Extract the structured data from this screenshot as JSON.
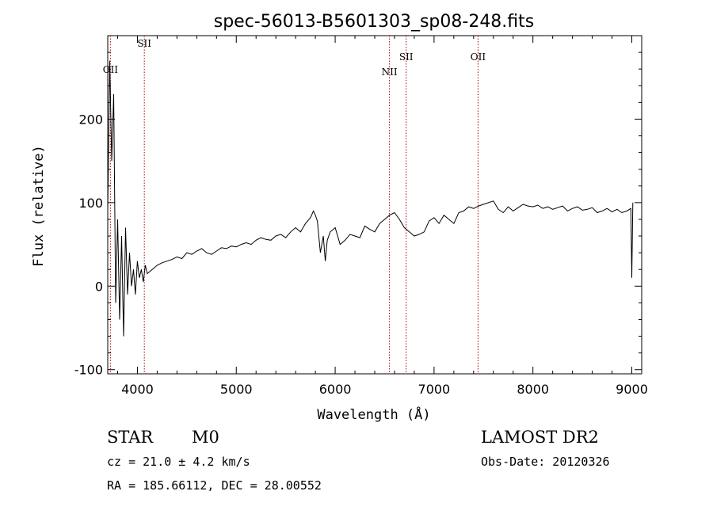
{
  "chart_data": {
    "type": "line",
    "title": "spec-56013-B5601303_sp08-248.fits",
    "xlabel": "Wavelength (Å)",
    "ylabel": "Flux (relative)",
    "xlim": [
      3700,
      9100
    ],
    "ylim": [
      -105,
      300
    ],
    "xticks": [
      4000,
      5000,
      6000,
      7000,
      8000,
      9000
    ],
    "yticks": [
      -100,
      0,
      100,
      200
    ],
    "grid": false,
    "series": [
      {
        "color": "#000000",
        "x": [
          3700,
          3720,
          3740,
          3760,
          3780,
          3800,
          3820,
          3840,
          3860,
          3880,
          3900,
          3920,
          3940,
          3960,
          3980,
          4000,
          4020,
          4040,
          4060,
          4080,
          4100,
          4150,
          4200,
          4250,
          4300,
          4350,
          4400,
          4450,
          4500,
          4550,
          4600,
          4650,
          4700,
          4750,
          4800,
          4850,
          4900,
          4950,
          5000,
          5050,
          5100,
          5150,
          5200,
          5250,
          5300,
          5350,
          5400,
          5450,
          5500,
          5550,
          5600,
          5650,
          5700,
          5750,
          5780,
          5800,
          5820,
          5850,
          5880,
          5900,
          5920,
          5950,
          6000,
          6050,
          6100,
          6150,
          6200,
          6250,
          6300,
          6350,
          6400,
          6450,
          6500,
          6550,
          6600,
          6650,
          6700,
          6750,
          6800,
          6850,
          6900,
          6950,
          7000,
          7050,
          7100,
          7150,
          7200,
          7250,
          7300,
          7350,
          7400,
          7450,
          7500,
          7550,
          7600,
          7650,
          7700,
          7750,
          7800,
          7850,
          7900,
          7950,
          8000,
          8050,
          8100,
          8150,
          8200,
          8250,
          8300,
          8350,
          8400,
          8450,
          8500,
          8550,
          8600,
          8650,
          8700,
          8750,
          8800,
          8850,
          8900,
          8950,
          8990,
          9000,
          9010
        ],
        "y": [
          90,
          270,
          150,
          230,
          -20,
          80,
          -40,
          60,
          -60,
          70,
          -10,
          40,
          0,
          20,
          -10,
          30,
          10,
          20,
          5,
          25,
          15,
          20,
          25,
          28,
          30,
          32,
          35,
          33,
          40,
          38,
          42,
          45,
          40,
          38,
          42,
          46,
          45,
          48,
          47,
          50,
          52,
          50,
          55,
          58,
          56,
          55,
          60,
          62,
          58,
          65,
          70,
          65,
          75,
          82,
          90,
          85,
          78,
          40,
          60,
          30,
          55,
          65,
          70,
          50,
          55,
          62,
          60,
          58,
          72,
          68,
          65,
          75,
          80,
          85,
          88,
          80,
          70,
          65,
          60,
          62,
          65,
          78,
          82,
          75,
          85,
          80,
          75,
          88,
          90,
          95,
          93,
          96,
          98,
          100,
          102,
          92,
          88,
          95,
          90,
          94,
          98,
          96,
          95,
          97,
          93,
          95,
          92,
          94,
          96,
          90,
          93,
          95,
          91,
          92,
          94,
          88,
          90,
          93,
          89,
          92,
          88,
          90,
          93,
          10,
          100
        ]
      }
    ],
    "annotations": [
      {
        "label": "OII",
        "x": 3727
      },
      {
        "label": "SII",
        "x": 4070
      },
      {
        "label": "NII",
        "x": 6549
      },
      {
        "label": "SII",
        "x": 6718
      },
      {
        "label": "OII",
        "x": 7445
      }
    ]
  },
  "info": {
    "object_class": "STAR",
    "subclass": "M0",
    "survey": "LAMOST DR2",
    "redshift": "cz = 21.0 ± 4.2 km/s",
    "obs_date": "Obs-Date: 20120326",
    "coords": "RA = 185.66112, DEC =  28.00552"
  }
}
